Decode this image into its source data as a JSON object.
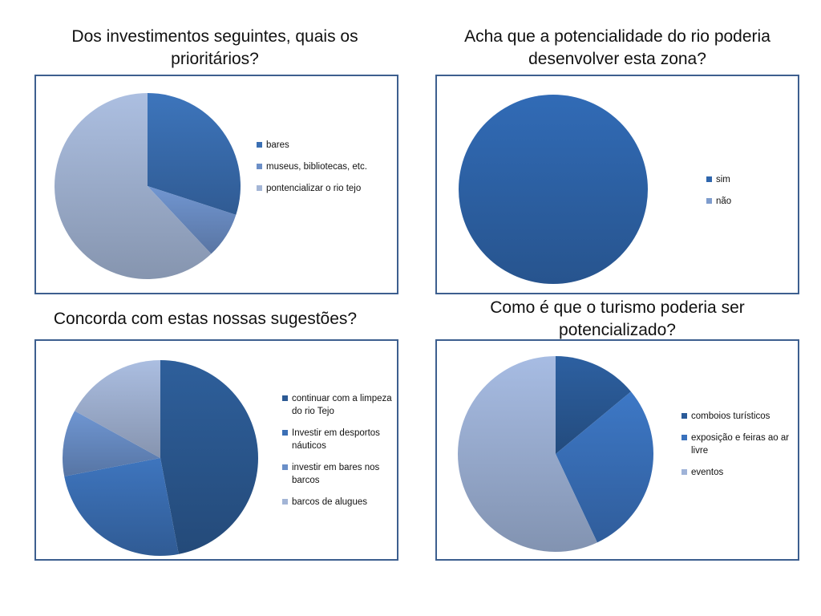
{
  "chart_data": [
    {
      "type": "pie",
      "title": "Dos investimentos seguintes, quais os prioritários?",
      "categories": [
        "bares",
        "museus, bibliotecas, etc.",
        "pontencializar o rio tejo"
      ],
      "values": [
        30,
        8,
        62
      ],
      "legend": "right",
      "colors": [
        "#3a6fb3",
        "#6c8fc7",
        "#a4b6d6"
      ]
    },
    {
      "type": "pie",
      "title": "Acha que a potencialidade do rio poderia desenvolver esta zona?",
      "categories": [
        "sim",
        "não"
      ],
      "values": [
        100,
        0
      ],
      "legend": "right",
      "colors": [
        "#2f66ad",
        "#7e9ccd"
      ]
    },
    {
      "type": "pie",
      "title": "Concorda com estas nossas sugestões?",
      "categories": [
        "continuar com a limpeza do rio Tejo",
        "Investir em desportos náuticos",
        "investir em bares nos barcos",
        "barcos de alugues"
      ],
      "values": [
        47,
        25,
        11,
        17
      ],
      "legend": "right",
      "colors": [
        "#2c5a94",
        "#3b6fb5",
        "#6a8fc8",
        "#a3b5d6"
      ]
    },
    {
      "type": "pie",
      "title": "Como é que o turismo poderia ser potencializado?",
      "categories": [
        "comboios turísticos",
        "exposição e feiras ao ar livre",
        "eventos"
      ],
      "values": [
        14,
        29,
        57
      ],
      "legend": "right",
      "colors": [
        "#2b5b99",
        "#3a72bd",
        "#9fb3d8"
      ]
    }
  ]
}
